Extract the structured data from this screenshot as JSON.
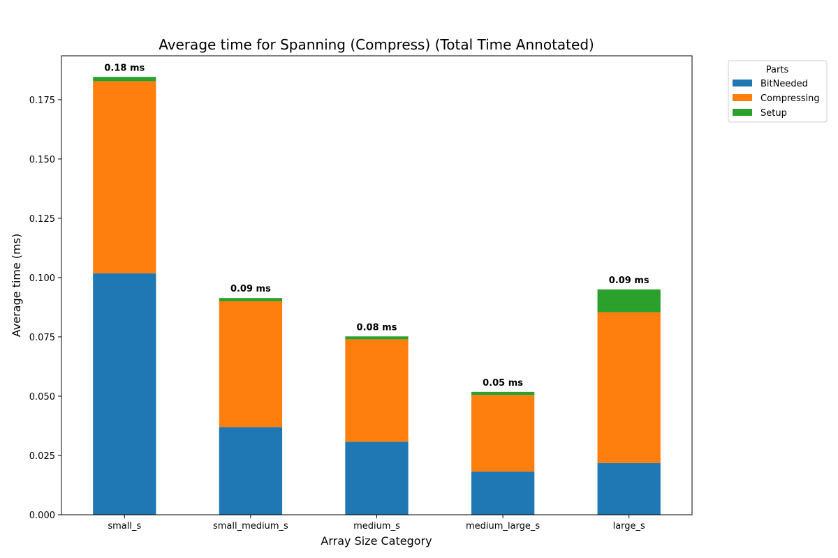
{
  "chart_data": {
    "type": "bar",
    "stacked": true,
    "title": "Average time for Spanning (Compress) (Total Time Annotated)",
    "xlabel": "Array Size Category",
    "ylabel": "Average time (ms)",
    "ylim": [
      0,
      0.1935
    ],
    "yticks": [
      "0.000",
      "0.025",
      "0.050",
      "0.075",
      "0.100",
      "0.125",
      "0.150",
      "0.175"
    ],
    "categories": [
      "small_s",
      "small_medium_s",
      "medium_s",
      "medium_large_s",
      "large_s"
    ],
    "series": [
      {
        "name": "BitNeeded",
        "color": "#1f77b4",
        "values": [
          0.1018,
          0.037,
          0.0308,
          0.0182,
          0.0218
        ]
      },
      {
        "name": "Compressing",
        "color": "#ff7f0e",
        "values": [
          0.081,
          0.053,
          0.0432,
          0.0323,
          0.0636
        ]
      },
      {
        "name": "Setup",
        "color": "#2ca02c",
        "values": [
          0.0018,
          0.0014,
          0.0012,
          0.0013,
          0.0096
        ]
      }
    ],
    "totals_labels": [
      "0.18 ms",
      "0.09 ms",
      "0.08 ms",
      "0.05 ms",
      "0.09 ms"
    ],
    "legend": {
      "title": "Parts",
      "placement": "outside-top-right"
    },
    "grid": false
  }
}
